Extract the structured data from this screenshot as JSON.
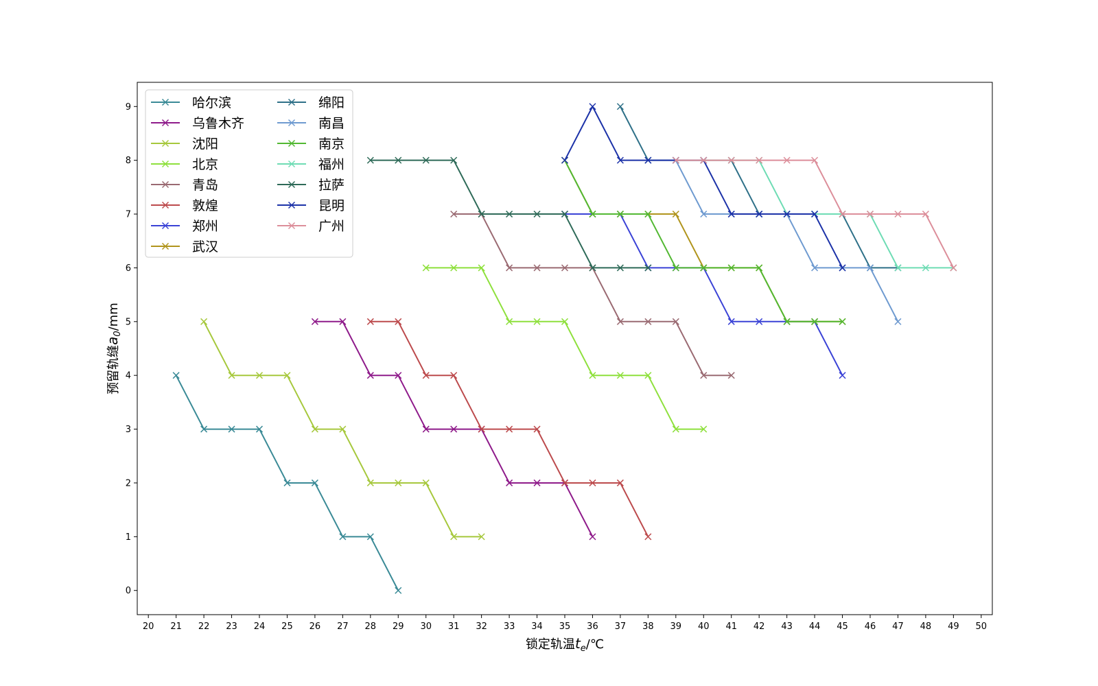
{
  "chart_data": {
    "type": "line",
    "title": "",
    "xlabel": "锁定轨温t_e/℃",
    "ylabel": "预留轨缝a_0/mm",
    "xlabel_parts": {
      "prefix": "锁定轨温",
      "var": "t",
      "sub": "e",
      "suffix": "/℃"
    },
    "ylabel_parts": {
      "prefix": "预留轨缝",
      "var": "a",
      "sub": "0",
      "suffix": "/mm"
    },
    "xlim": [
      19.6,
      50.4
    ],
    "ylim": [
      -0.45,
      9.45
    ],
    "xticks": [
      20,
      21,
      22,
      23,
      24,
      25,
      26,
      27,
      28,
      29,
      30,
      31,
      32,
      33,
      34,
      35,
      36,
      37,
      38,
      39,
      40,
      41,
      42,
      43,
      44,
      45,
      46,
      47,
      48,
      49,
      50
    ],
    "yticks": [
      0,
      1,
      2,
      3,
      4,
      5,
      6,
      7,
      8,
      9
    ],
    "marker": "x",
    "legend_position": "upper-left",
    "legend_columns": 2,
    "series": [
      {
        "name": "哈尔滨",
        "color": "#3a8a96",
        "x": [
          21,
          22,
          23,
          24,
          25,
          26,
          27,
          28,
          29
        ],
        "y": [
          4,
          3,
          3,
          3,
          2,
          2,
          1,
          1,
          0
        ]
      },
      {
        "name": "乌鲁木齐",
        "color": "#8e1a8a",
        "x": [
          26,
          27,
          28,
          29,
          30,
          31,
          32,
          33,
          34,
          35,
          36
        ],
        "y": [
          5,
          5,
          4,
          4,
          3,
          3,
          3,
          2,
          2,
          2,
          1
        ]
      },
      {
        "name": "沈阳",
        "color": "#a6c83c",
        "x": [
          22,
          23,
          24,
          25,
          26,
          27,
          28,
          29,
          30,
          31,
          32
        ],
        "y": [
          5,
          4,
          4,
          4,
          3,
          3,
          2,
          2,
          2,
          1,
          1
        ]
      },
      {
        "name": "北京",
        "color": "#8ee03c",
        "x": [
          30,
          31,
          32,
          33,
          34,
          35,
          36,
          37,
          38,
          39,
          40
        ],
        "y": [
          6,
          6,
          6,
          5,
          5,
          5,
          4,
          4,
          4,
          3,
          3
        ]
      },
      {
        "name": "青岛",
        "color": "#9a6a72",
        "x": [
          31,
          32,
          33,
          34,
          35,
          36,
          37,
          38,
          39,
          40,
          41
        ],
        "y": [
          7,
          7,
          6,
          6,
          6,
          6,
          5,
          5,
          5,
          4,
          4
        ]
      },
      {
        "name": "敦煌",
        "color": "#bc4a4c",
        "x": [
          28,
          29,
          30,
          31,
          32,
          33,
          34,
          35,
          36,
          37,
          38
        ],
        "y": [
          5,
          5,
          4,
          4,
          3,
          3,
          3,
          2,
          2,
          2,
          1
        ]
      },
      {
        "name": "郑州",
        "color": "#3a42d6",
        "x": [
          35,
          36,
          37,
          38,
          39,
          40,
          41,
          42,
          43,
          44,
          45
        ],
        "y": [
          7,
          7,
          7,
          6,
          6,
          6,
          5,
          5,
          5,
          5,
          4
        ]
      },
      {
        "name": "武汉",
        "color": "#b0941c",
        "x": [
          35,
          36,
          37,
          38,
          39,
          40,
          41,
          42,
          43,
          44,
          45
        ],
        "y": [
          8,
          7,
          7,
          7,
          7,
          6,
          6,
          6,
          5,
          5,
          5
        ]
      },
      {
        "name": "绵阳",
        "color": "#2e7088",
        "x": [
          37,
          38,
          39,
          40,
          41,
          42,
          43,
          44,
          45,
          46,
          47
        ],
        "y": [
          9,
          8,
          8,
          8,
          8,
          7,
          7,
          7,
          7,
          6,
          6
        ]
      },
      {
        "name": "南昌",
        "color": "#6e9ad0",
        "x": [
          39,
          40,
          41,
          42,
          43,
          44,
          45,
          46,
          47
        ],
        "y": [
          8,
          7,
          7,
          7,
          7,
          6,
          6,
          6,
          5
        ]
      },
      {
        "name": "南京",
        "color": "#52b832",
        "x": [
          35,
          36,
          37,
          38,
          39,
          40,
          41,
          42,
          43,
          44,
          45
        ],
        "y": [
          8,
          7,
          7,
          7,
          6,
          6,
          6,
          6,
          5,
          5,
          5
        ]
      },
      {
        "name": "福州",
        "color": "#6edcb4",
        "x": [
          39,
          40,
          41,
          42,
          43,
          44,
          45,
          46,
          47,
          48,
          49
        ],
        "y": [
          8,
          8,
          8,
          8,
          7,
          7,
          7,
          7,
          6,
          6,
          6
        ]
      },
      {
        "name": "拉萨",
        "color": "#2e6a58",
        "x": [
          28,
          29,
          30,
          31,
          32,
          33,
          34,
          35,
          36,
          37,
          38
        ],
        "y": [
          8,
          8,
          8,
          8,
          7,
          7,
          7,
          7,
          6,
          6,
          6
        ]
      },
      {
        "name": "昆明",
        "color": "#1c32a8",
        "x": [
          35,
          36,
          37,
          38,
          39,
          40,
          41,
          42,
          43,
          44,
          45
        ],
        "y": [
          8,
          9,
          8,
          8,
          8,
          8,
          7,
          7,
          7,
          7,
          6
        ]
      },
      {
        "name": "广州",
        "color": "#dc8e9a",
        "x": [
          39,
          40,
          41,
          42,
          43,
          44,
          45,
          46,
          47,
          48,
          49
        ],
        "y": [
          8,
          8,
          8,
          8,
          8,
          8,
          7,
          7,
          7,
          7,
          6
        ]
      }
    ]
  }
}
